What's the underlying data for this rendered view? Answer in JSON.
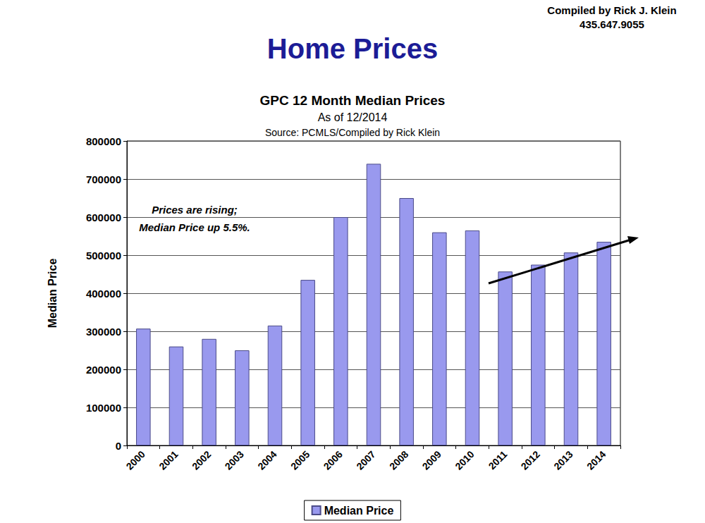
{
  "header": {
    "title": "Home Prices",
    "credit": [
      "Compiled by Rick J. Klein",
      "435.647.9055"
    ]
  },
  "chart_data": {
    "type": "bar",
    "title": "GPC 12 Month Median Prices",
    "subtitle": [
      "As of 12/2014",
      "Source: PCMLS/Compiled by Rick Klein"
    ],
    "y_label": "Median Price",
    "annotation": [
      "Prices are rising;",
      "Median Price up 5.5%."
    ],
    "categories": [
      "2000",
      "2001",
      "2002",
      "2003",
      "2004",
      "2005",
      "2006",
      "2007",
      "2008",
      "2009",
      "2010",
      "2011",
      "2012",
      "2013",
      "2014"
    ],
    "series": [
      {
        "name": "Median Price",
        "color": "#9999ee",
        "values": [
          307000,
          260000,
          280000,
          250000,
          315000,
          435000,
          600000,
          740000,
          650000,
          560000,
          565000,
          457000,
          475000,
          507000,
          535000
        ]
      }
    ],
    "ylim": [
      0,
      800000
    ],
    "yticks": [
      0,
      100000,
      200000,
      300000,
      400000,
      500000,
      600000,
      700000,
      800000
    ],
    "grid": true,
    "legend": "bottom",
    "data_labels": false
  }
}
